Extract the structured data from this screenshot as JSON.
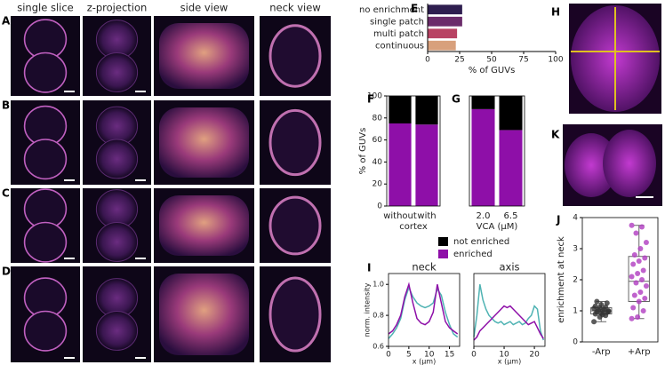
{
  "column_headers": [
    "single slice",
    "z-projection",
    "side view",
    "neck view"
  ],
  "image_panel_labels": [
    "A",
    "B",
    "C",
    "D",
    "H",
    "K"
  ],
  "chart_data": [
    {
      "type": "hbar",
      "panel": "E",
      "categories": [
        "no enrichment",
        "single patch",
        "multi patch",
        "continuous"
      ],
      "values": [
        27,
        27,
        23,
        22
      ],
      "colors": [
        "#2e1e4f",
        "#6b2b6a",
        "#b84263",
        "#d8a07c"
      ],
      "xlim": [
        0,
        100
      ],
      "xticks": [
        0,
        25,
        50,
        75,
        100
      ],
      "xlabel": "% of GUVs"
    },
    {
      "type": "stacked_bar",
      "panel": "F",
      "categories": [
        "without",
        "with"
      ],
      "xlabel": "cortex",
      "ylabel": "% of GUVs",
      "series": [
        {
          "name": "enriched",
          "color": "#8e0fa8",
          "values": [
            75,
            74
          ]
        },
        {
          "name": "not enriched",
          "color": "#000000",
          "values": [
            25,
            26
          ]
        }
      ],
      "ylim": [
        0,
        100
      ],
      "yticks": [
        0,
        20,
        40,
        60,
        80,
        100
      ],
      "legend": true
    },
    {
      "type": "stacked_bar",
      "panel": "G",
      "categories": [
        "2.0",
        "6.5"
      ],
      "xlabel": "VCA (μM)",
      "series": [
        {
          "color": "#8e0fa8",
          "values": [
            88,
            69
          ]
        },
        {
          "color": "#000000",
          "values": [
            12,
            31
          ]
        }
      ],
      "ylim": [
        0,
        100
      ]
    },
    {
      "type": "line",
      "panel": "I",
      "title": "neck",
      "xlabel": "x (μm)",
      "ylabel": "norm. intensity",
      "x": [
        0,
        1,
        2,
        3,
        4,
        5,
        6,
        7,
        8,
        9,
        10,
        11,
        12,
        13,
        14,
        15,
        16,
        17
      ],
      "series": [
        {
          "color": "#4fb3b3",
          "values": [
            0.65,
            0.68,
            0.72,
            0.78,
            0.9,
            0.98,
            0.92,
            0.88,
            0.86,
            0.85,
            0.86,
            0.88,
            0.97,
            0.93,
            0.82,
            0.74,
            0.68,
            0.66
          ]
        },
        {
          "color": "#8e0fa8",
          "values": [
            0.68,
            0.7,
            0.74,
            0.8,
            0.92,
            1.0,
            0.88,
            0.78,
            0.75,
            0.74,
            0.76,
            0.82,
            1.0,
            0.88,
            0.76,
            0.72,
            0.7,
            0.68
          ]
        }
      ],
      "xlim": [
        0,
        17.5
      ],
      "xticks": [
        0,
        5,
        10,
        15
      ],
      "ylim": [
        0.6,
        1.07
      ],
      "yticks": [
        0.6,
        0.8,
        {
          "value": 1,
          "label": "1.0"
        }
      ]
    },
    {
      "type": "line",
      "title": "axis",
      "xlabel": "x (μm)",
      "x": [
        0,
        1,
        2,
        3,
        4,
        5,
        6,
        7,
        8,
        9,
        10,
        11,
        12,
        13,
        14,
        15,
        16,
        17,
        18,
        19,
        20,
        21,
        22,
        23
      ],
      "series": [
        {
          "color": "#4fb3b3",
          "values": [
            0.66,
            0.8,
            1.0,
            0.9,
            0.84,
            0.8,
            0.78,
            0.76,
            0.75,
            0.76,
            0.74,
            0.75,
            0.76,
            0.74,
            0.75,
            0.76,
            0.74,
            0.75,
            0.78,
            0.8,
            0.86,
            0.84,
            0.7,
            0.64
          ]
        },
        {
          "color": "#8e0fa8",
          "values": [
            0.64,
            0.66,
            0.7,
            0.72,
            0.74,
            0.76,
            0.78,
            0.8,
            0.82,
            0.84,
            0.86,
            0.85,
            0.86,
            0.84,
            0.82,
            0.8,
            0.78,
            0.76,
            0.74,
            0.75,
            0.76,
            0.72,
            0.68,
            0.65
          ]
        }
      ],
      "xlim": [
        0,
        23.5
      ],
      "xticks": [
        0,
        10,
        20
      ],
      "ylim": [
        0.6,
        1.07
      ]
    },
    {
      "type": "box",
      "panel": "J",
      "categories": [
        "-Arp",
        "+Arp"
      ],
      "ylabel": "enrichment at neck",
      "colors": [
        "#333333",
        "#b03cc0"
      ],
      "boxes": [
        {
          "whislo": 0.65,
          "q1": 0.9,
          "med": 1.0,
          "q3": 1.1,
          "whishi": 1.3
        },
        {
          "whislo": 0.75,
          "q1": 1.3,
          "med": 1.95,
          "q3": 2.75,
          "whishi": 3.75
        }
      ],
      "points": [
        [
          0.65,
          0.8,
          0.85,
          0.9,
          0.92,
          0.95,
          0.97,
          1.0,
          1.0,
          1.02,
          1.05,
          1.08,
          1.1,
          1.12,
          1.15,
          1.2,
          1.25,
          1.3,
          0.88,
          0.98
        ],
        [
          0.75,
          0.8,
          1.0,
          1.1,
          1.3,
          1.4,
          1.5,
          1.6,
          1.8,
          1.9,
          2.0,
          2.1,
          2.2,
          2.3,
          2.5,
          2.6,
          2.7,
          2.8,
          3.0,
          3.2,
          3.5,
          3.7,
          3.75
        ]
      ],
      "ylim": [
        0,
        4
      ],
      "yticks": [
        0,
        1,
        2,
        3,
        4
      ]
    }
  ]
}
